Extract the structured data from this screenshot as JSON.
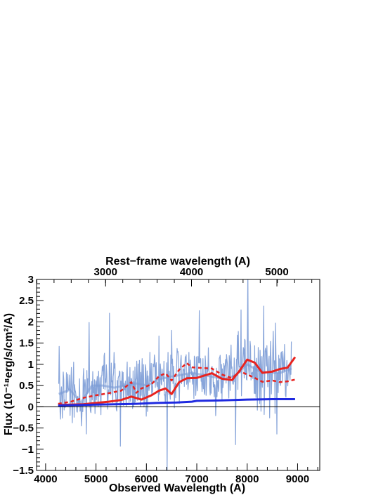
{
  "chart_data": {
    "type": "line",
    "xlabel": "Observed Wavelength (A)",
    "x2label": "Rest−frame wavelength (A)",
    "ylabel": "Flux (10⁻¹⁸erg/s/cm²/A)",
    "xlim": [
      3820,
      9440
    ],
    "ylim": [
      -1.5,
      3
    ],
    "x_ticks": [
      4000,
      5000,
      6000,
      7000,
      8000,
      9000
    ],
    "y_ticks": [
      -1.5,
      -1,
      -0.5,
      0,
      0.5,
      1,
      1.5,
      2,
      2.5,
      3
    ],
    "y_tick_labels": [
      "−1.5",
      "−1",
      "−0.5",
      "0",
      "0.5",
      "1",
      "1.5",
      "2",
      "2.5",
      "3"
    ],
    "x2_ticks_rest": [
      3000,
      4000,
      5000
    ],
    "x2_tick_observed": [
      5190,
      6895,
      8590
    ],
    "reference_line_y": 0,
    "series": [
      {
        "color": "#7b9bd6",
        "style": "filled noisy spectrum",
        "x": [
          4260,
          4480,
          4700,
          4920,
          5140,
          5360,
          5580,
          5800,
          6020,
          6240,
          6460,
          6680,
          6900,
          7120,
          7340,
          7560,
          7780,
          8000,
          8220,
          8440,
          8660,
          8880
        ],
        "values": [
          0.3,
          0.4,
          0.1,
          0.5,
          0.5,
          0.45,
          0.5,
          0.55,
          0.5,
          0.65,
          0.7,
          0.75,
          0.8,
          0.75,
          0.7,
          0.65,
          0.75,
          1.0,
          0.85,
          0.8,
          0.8,
          0.9
        ]
      },
      {
        "color": "#e8231f",
        "style": "solid",
        "x": [
          4250,
          4500,
          4750,
          5000,
          5250,
          5500,
          5700,
          5900,
          6100,
          6250,
          6380,
          6500,
          6650,
          6800,
          7000,
          7300,
          7500,
          7700,
          7850,
          8000,
          8150,
          8300,
          8500,
          8650,
          8800,
          8950
        ],
        "values": [
          0.04,
          0.05,
          0.06,
          0.09,
          0.12,
          0.16,
          0.24,
          0.17,
          0.27,
          0.38,
          0.43,
          0.3,
          0.58,
          0.67,
          0.68,
          0.79,
          0.66,
          0.63,
          0.85,
          1.11,
          1.04,
          0.8,
          0.83,
          0.89,
          0.92,
          1.17
        ]
      },
      {
        "color": "#e8231f",
        "style": "dashed",
        "x": [
          4250,
          4500,
          4750,
          5000,
          5250,
          5500,
          5700,
          5800,
          5900,
          6100,
          6250,
          6380,
          6500,
          6650,
          6800,
          6900,
          7000,
          7300,
          7500,
          7700,
          7850,
          8000,
          8150,
          8300,
          8500,
          8650,
          8800,
          8950
        ],
        "values": [
          0.07,
          0.12,
          0.21,
          0.27,
          0.32,
          0.38,
          0.58,
          0.33,
          0.43,
          0.53,
          0.72,
          0.79,
          0.62,
          0.87,
          1.03,
          0.93,
          0.92,
          0.9,
          0.76,
          0.67,
          0.84,
          0.76,
          0.68,
          0.59,
          0.62,
          0.58,
          0.6,
          0.64
        ]
      },
      {
        "color": "#1f2ae0",
        "style": "solid",
        "x": [
          4250,
          4600,
          5000,
          5400,
          5800,
          6200,
          6600,
          6900,
          7000,
          7500,
          8000,
          8500,
          8950
        ],
        "values": [
          0.03,
          0.04,
          0.05,
          0.06,
          0.07,
          0.09,
          0.1,
          0.12,
          0.14,
          0.15,
          0.17,
          0.18,
          0.18
        ]
      }
    ]
  }
}
